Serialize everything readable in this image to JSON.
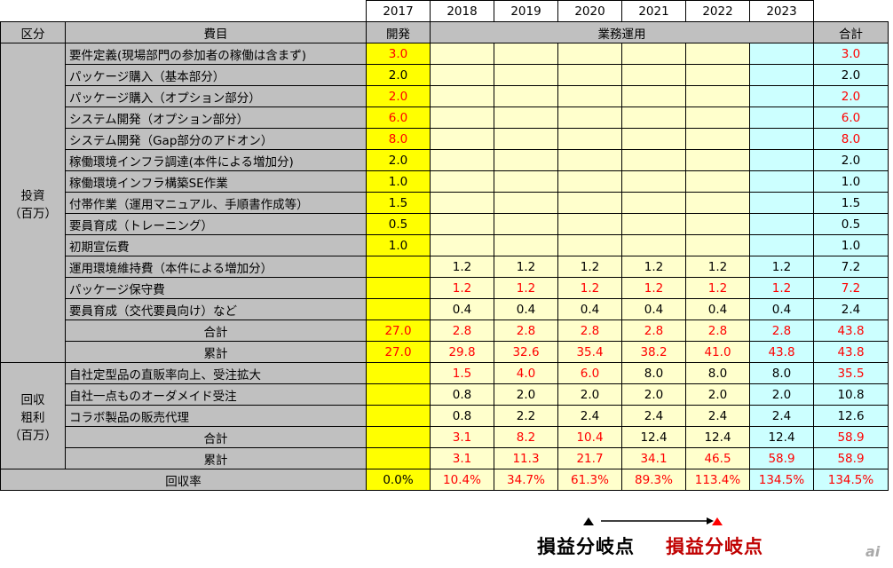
{
  "header": {
    "years": [
      "2017",
      "2018",
      "2019",
      "2020",
      "2021",
      "2022",
      "2023"
    ],
    "col_kubun": "区分",
    "col_himoku": "費目",
    "kaihatsu": "開発",
    "gyomu": "業務運用",
    "total": "合計"
  },
  "investment": {
    "label_line1": "投資",
    "label_line2": "（百万）",
    "initial_rows": [
      {
        "name": "要件定義(現場部門の参加者の稼働は含まず)",
        "v2017": "3.0",
        "total": "3.0",
        "red": true
      },
      {
        "name": "パッケージ購入（基本部分）",
        "v2017": "2.0",
        "total": "2.0",
        "red": false
      },
      {
        "name": "パッケージ購入（オプション部分）",
        "v2017": "2.0",
        "total": "2.0",
        "red": true
      },
      {
        "name": "システム開発（オプション部分）",
        "v2017": "6.0",
        "total": "6.0",
        "red": true
      },
      {
        "name": "システム開発（Gap部分のアドオン）",
        "v2017": "8.0",
        "total": "8.0",
        "red": true
      },
      {
        "name": "稼働環境インフラ調達(本件による増加分)",
        "v2017": "2.0",
        "total": "2.0",
        "red": false
      },
      {
        "name": "稼働環境インフラ構築SE作業",
        "v2017": "1.0",
        "total": "1.0",
        "red": false
      },
      {
        "name": "付帯作業（運用マニュアル、手順書作成等）",
        "v2017": "1.5",
        "total": "1.5",
        "red": false
      },
      {
        "name": "要員育成（トレーニング）",
        "v2017": "0.5",
        "total": "0.5",
        "red": false
      },
      {
        "name": "初期宣伝費",
        "v2017": "1.0",
        "total": "1.0",
        "red": false
      }
    ],
    "running_rows": [
      {
        "name": "運用環境維持費（本件による増加分）",
        "vals": [
          "1.2",
          "1.2",
          "1.2",
          "1.2",
          "1.2",
          "1.2"
        ],
        "total": "7.2",
        "red": false
      },
      {
        "name": "パッケージ保守費",
        "vals": [
          "1.2",
          "1.2",
          "1.2",
          "1.2",
          "1.2",
          "1.2"
        ],
        "total": "7.2",
        "red": true
      },
      {
        "name": "要員育成（交代要員向け）など",
        "vals": [
          "0.4",
          "0.4",
          "0.4",
          "0.4",
          "0.4",
          "0.4"
        ],
        "total": "2.4",
        "red": false
      }
    ],
    "sum": {
      "label": "合計",
      "vals": [
        "27.0",
        "2.8",
        "2.8",
        "2.8",
        "2.8",
        "2.8",
        "2.8"
      ],
      "total": "43.8"
    },
    "cum": {
      "label": "累計",
      "vals": [
        "27.0",
        "29.8",
        "32.6",
        "35.4",
        "38.2",
        "41.0",
        "43.8"
      ],
      "total": "43.8"
    }
  },
  "return": {
    "label_line1": "回収",
    "label_line2": "粗利",
    "label_line3": "（百万）",
    "rows": [
      {
        "name": "自社定型品の直販率向上、受注拡大",
        "vals": [
          "1.5",
          "4.0",
          "6.0",
          "8.0",
          "8.0",
          "8.0"
        ],
        "reds": [
          true,
          true,
          true,
          false,
          false,
          false
        ],
        "total": "35.5",
        "total_red": true
      },
      {
        "name": "自社一点ものオーダメイド受注",
        "vals": [
          "0.8",
          "2.0",
          "2.0",
          "2.0",
          "2.0",
          "2.0"
        ],
        "reds": [
          false,
          false,
          false,
          false,
          false,
          false
        ],
        "total": "10.8",
        "total_red": false
      },
      {
        "name": "コラボ製品の販売代理",
        "vals": [
          "0.8",
          "2.2",
          "2.4",
          "2.4",
          "2.4",
          "2.4"
        ],
        "reds": [
          false,
          false,
          false,
          false,
          false,
          false
        ],
        "total": "12.6",
        "total_red": false
      }
    ],
    "sum": {
      "label": "合計",
      "vals": [
        "3.1",
        "8.2",
        "10.4",
        "12.4",
        "12.4",
        "12.4"
      ],
      "reds": [
        true,
        true,
        true,
        false,
        false,
        false
      ],
      "total": "58.9"
    },
    "cum": {
      "label": "累計",
      "vals": [
        "3.1",
        "11.3",
        "21.7",
        "34.1",
        "46.5",
        "58.9"
      ],
      "total": "58.9"
    }
  },
  "recovery": {
    "label": "回収率",
    "v2017": "0.0%",
    "vals": [
      "10.4%",
      "34.7%",
      "61.3%",
      "89.3%",
      "113.4%",
      "134.5%"
    ],
    "total": "134.5%"
  },
  "breakeven": {
    "label_black": "損益分岐点",
    "label_red": "損益分岐点",
    "color_red": "#c00000"
  },
  "watermark": "ai"
}
